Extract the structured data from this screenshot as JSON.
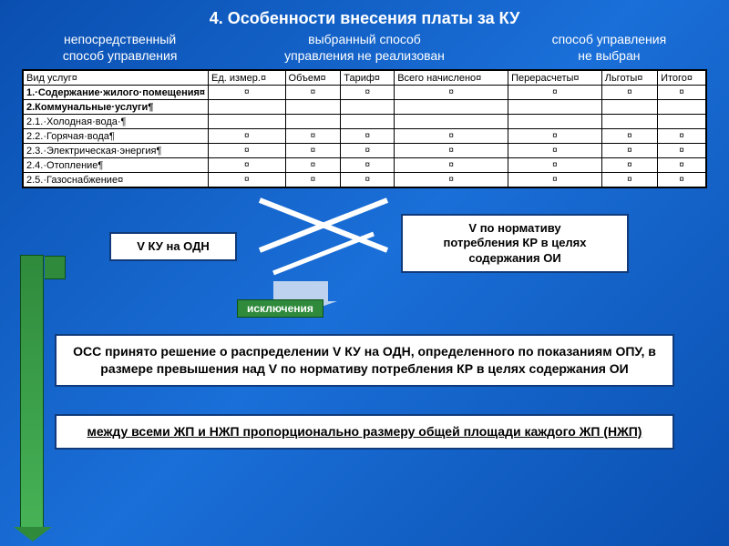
{
  "title": "4. Особенности внесения платы за КУ",
  "subhead": {
    "col1_l1": "непосредственный",
    "col1_l2": "способ управления",
    "col2_l1": "выбранный способ",
    "col2_l2": "управления не реализован",
    "col3_l1": "способ управления",
    "col3_l2": "не выбран"
  },
  "table": {
    "headers": [
      "Вид услуг¤",
      "Ед. измер.¤",
      "Объем¤",
      "Тариф¤",
      "Всего начислено¤",
      "Перерасчеты¤",
      "Льготы¤",
      "Итого¤"
    ],
    "rows_labels": [
      "1.·Содержание·жилого·помещения¤",
      "2.Коммунальные·услуги¶",
      "2.1.·Холодная·вода·¶",
      "2.2.·Горячая·вода¶",
      "2.3.·Электрическая·энергия¶",
      "2.4.·Отопление¶",
      "2.5.·Газоснабжение¤"
    ],
    "row_bold": [
      true,
      true,
      false,
      false,
      false,
      false,
      false
    ],
    "row_blank_cells": [
      false,
      true,
      true,
      false,
      false,
      false,
      false
    ],
    "placeholder": "¤"
  },
  "mid": {
    "left_label": "V КУ на ОДН",
    "right_label_l1": "V по нормативу",
    "right_label_l2": "потребления КР в целях",
    "right_label_l3": "содержания ОИ",
    "exceptions": "исключения"
  },
  "lower": "ОСС принято решение о распределении V КУ на ОДН, определенного по показаниям ОПУ,  в размере превышения над V по нормативу потребления КР в целях содержания ОИ",
  "final": "между всеми ЖП и НЖП пропорционально размеру общей площади каждого ЖП (НЖП)",
  "colors": {
    "bg_start": "#0a4fb0",
    "bg_mid": "#1a6fd8",
    "box_border": "#103a7a",
    "green": "#2f8a3c",
    "arrow_fill": "#bcd2ee"
  }
}
